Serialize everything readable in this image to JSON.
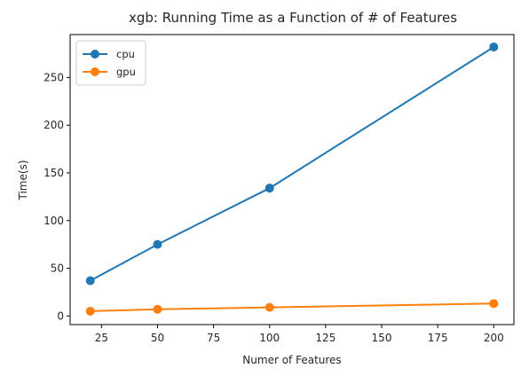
{
  "chart_data": {
    "type": "line",
    "title": "xgb: Running Time as a Function of # of Features",
    "xlabel": "Numer of Features",
    "ylabel": "Time(s)",
    "x": [
      20,
      50,
      100,
      200
    ],
    "xlim": [
      11,
      209
    ],
    "ylim": [
      -9,
      295
    ],
    "xticks": [
      25,
      50,
      75,
      100,
      125,
      150,
      175,
      200
    ],
    "yticks": [
      0,
      50,
      100,
      150,
      200,
      250
    ],
    "grid": false,
    "legend_position": "top-left",
    "series": [
      {
        "name": "cpu",
        "values": [
          37,
          75,
          134,
          282
        ],
        "color": "#1f77b4",
        "marker": "circle"
      },
      {
        "name": "gpu",
        "values": [
          5,
          7,
          9,
          13
        ],
        "color": "#ff7f0e",
        "marker": "circle"
      }
    ]
  }
}
